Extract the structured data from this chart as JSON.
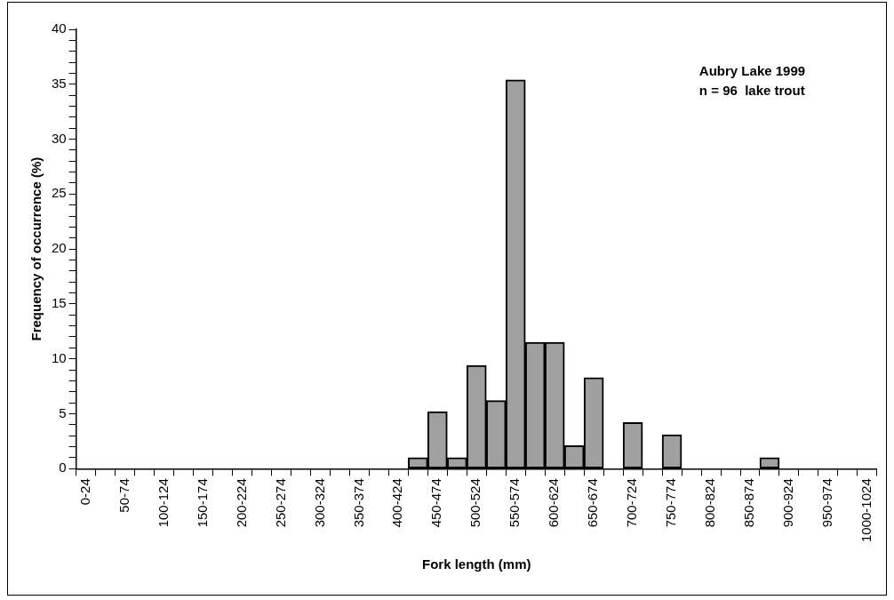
{
  "chart_data": {
    "type": "bar",
    "xlabel": "Fork length (mm)",
    "ylabel": "Frequency of occurrence (%)",
    "annotations": [
      "Aubry Lake 1999\nn = 96  lake trout"
    ],
    "categories": [
      "0-24",
      null,
      "50-74",
      null,
      "100-124",
      null,
      "150-174",
      null,
      "200-224",
      null,
      "250-274",
      null,
      "300-324",
      null,
      "350-374",
      null,
      "400-424",
      null,
      "450-474",
      null,
      "500-524",
      null,
      "550-574",
      null,
      "600-624",
      null,
      "650-674",
      null,
      "700-724",
      null,
      "750-774",
      null,
      "800-824",
      null,
      "850-874",
      null,
      "900-924",
      null,
      "950-974",
      null,
      "1000-1024"
    ],
    "values": [
      0,
      0,
      0,
      0,
      0,
      0,
      0,
      0,
      0,
      0,
      0,
      0,
      0,
      0,
      0,
      0,
      0,
      1.0,
      5.2,
      1.0,
      9.4,
      6.2,
      35.4,
      11.5,
      11.5,
      2.1,
      8.3,
      0,
      4.2,
      0,
      3.1,
      0,
      0,
      0,
      0,
      1.0,
      0,
      0,
      0,
      0,
      0
    ],
    "color": "#a0a0a0",
    "ylim": [
      0,
      40
    ],
    "yticks": [
      0,
      {
        "value": 1,
        "label": null
      },
      {
        "value": 2,
        "label": null
      },
      {
        "value": 3,
        "label": null
      },
      {
        "value": 4,
        "label": null
      },
      5,
      {
        "value": 6,
        "label": null
      },
      {
        "value": 7,
        "label": null
      },
      {
        "value": 8,
        "label": null
      },
      {
        "value": 9,
        "label": null
      },
      10,
      {
        "value": 11,
        "label": null
      },
      {
        "value": 12,
        "label": null
      },
      {
        "value": 13,
        "label": null
      },
      {
        "value": 14,
        "label": null
      },
      15,
      {
        "value": 16,
        "label": null
      },
      {
        "value": 17,
        "label": null
      },
      {
        "value": 18,
        "label": null
      },
      {
        "value": 19,
        "label": null
      },
      20,
      {
        "value": 21,
        "label": null
      },
      {
        "value": 22,
        "label": null
      },
      {
        "value": 23,
        "label": null
      },
      {
        "value": 24,
        "label": null
      },
      25,
      {
        "value": 26,
        "label": null
      },
      {
        "value": 27,
        "label": null
      },
      {
        "value": 28,
        "label": null
      },
      {
        "value": 29,
        "label": null
      },
      30,
      {
        "value": 31,
        "label": null
      },
      {
        "value": 32,
        "label": null
      },
      {
        "value": 33,
        "label": null
      },
      {
        "value": 34,
        "label": null
      },
      35,
      {
        "value": 36,
        "label": null
      },
      {
        "value": 37,
        "label": null
      },
      {
        "value": 38,
        "label": null
      },
      {
        "value": 39,
        "label": null
      },
      40
    ],
    "grid": false,
    "legend": false
  }
}
